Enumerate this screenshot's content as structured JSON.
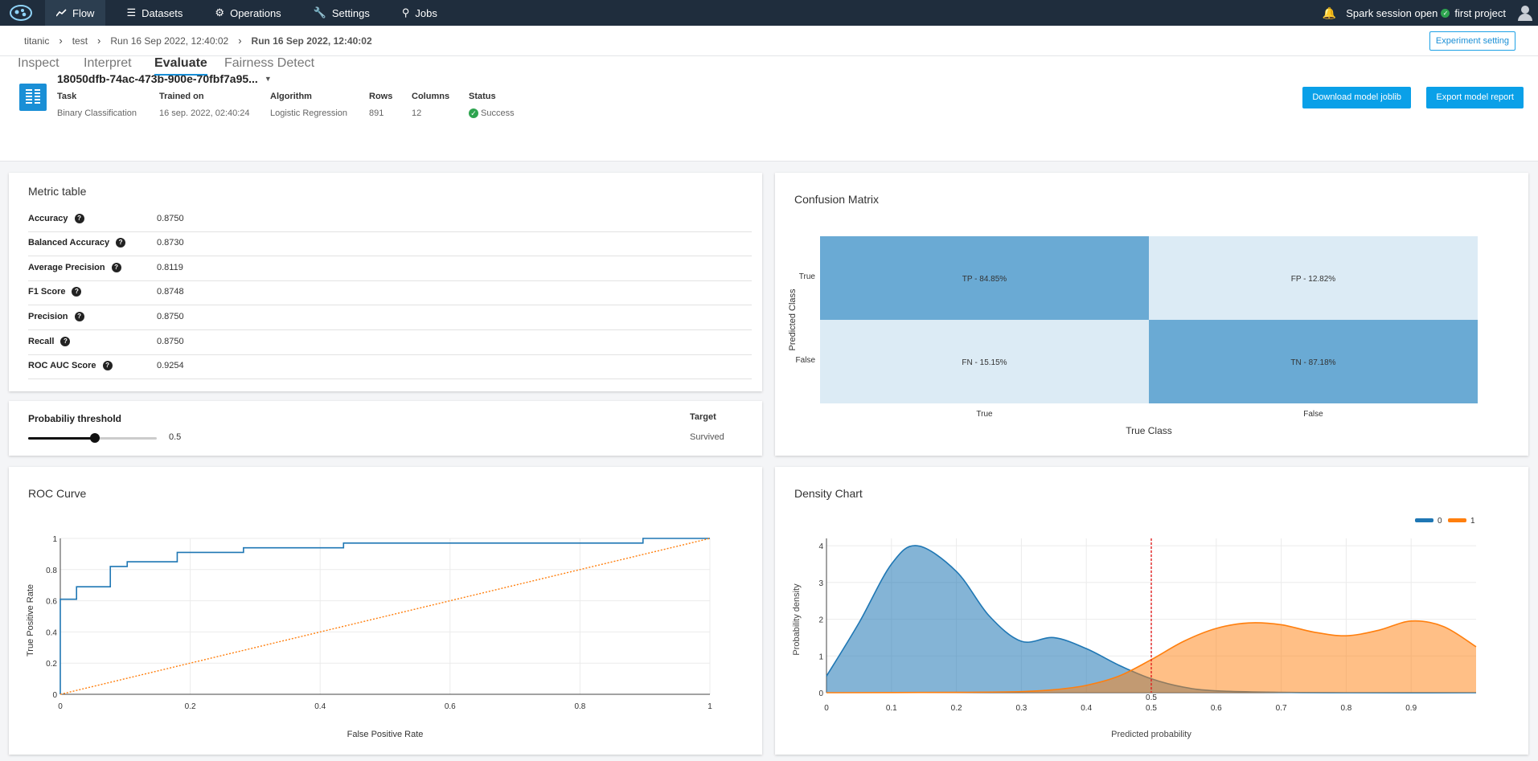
{
  "nav": {
    "items": [
      {
        "label": "Flow",
        "icon": "trend-icon"
      },
      {
        "label": "Datasets",
        "icon": "list-icon"
      },
      {
        "label": "Operations",
        "icon": "gear-icon"
      },
      {
        "label": "Settings",
        "icon": "wrench-icon"
      },
      {
        "label": "Jobs",
        "icon": "search-gear-icon"
      }
    ],
    "session": "Spark session open",
    "project": "first project"
  },
  "breadcrumb": {
    "items": [
      "titanic",
      "test",
      "Run 16 Sep 2022, 12:40:02",
      "Run 16 Sep 2022, 12:40:02"
    ],
    "experiment_button": "Experiment setting"
  },
  "model": {
    "title": "18050dfb-74ac-473b-900e-70fbf7a95...",
    "meta": [
      {
        "key": "Task",
        "value": "Binary Classification"
      },
      {
        "key": "Trained on",
        "value": "16 sep. 2022, 02:40:24"
      },
      {
        "key": "Algorithm",
        "value": "Logistic Regression"
      },
      {
        "key": "Rows",
        "value": "891"
      },
      {
        "key": "Columns",
        "value": "12"
      },
      {
        "key": "Status",
        "value": "Success"
      }
    ],
    "download_button": "Download model joblib",
    "export_button": "Export model report",
    "tabs": [
      "Inspect",
      "Interpret",
      "Evaluate",
      "Fairness Detect"
    ],
    "active_tab": "Evaluate"
  },
  "metrics": {
    "title": "Metric table",
    "rows": [
      {
        "name": "Accuracy",
        "value": "0.8750"
      },
      {
        "name": "Balanced Accuracy",
        "value": "0.8730"
      },
      {
        "name": "Average Precision",
        "value": "0.8119"
      },
      {
        "name": "F1 Score",
        "value": "0.8748"
      },
      {
        "name": "Precision",
        "value": "0.8750"
      },
      {
        "name": "Recall",
        "value": "0.8750"
      },
      {
        "name": "ROC AUC Score",
        "value": "0.9254"
      }
    ]
  },
  "threshold": {
    "label": "Probabiliy threshold",
    "value": "0.5",
    "fraction": 0.5,
    "target_label": "Target",
    "target_value": "Survived"
  },
  "colors": {
    "accent": "#0aa0e8",
    "nav_bg": "#1f2d3d",
    "series0": "#1f77b4",
    "series1": "#ff7f0e",
    "cm_dark": "#6aaad4",
    "cm_light": "#dcebf5"
  },
  "chart_data": [
    {
      "type": "heatmap",
      "title": "Confusion Matrix",
      "xlabel": "True Class",
      "ylabel": "Predicted Class",
      "x_categories": [
        "True",
        "False"
      ],
      "y_categories": [
        "True",
        "False"
      ],
      "cells": [
        [
          "TP - 84.85%",
          "FP - 12.82%"
        ],
        [
          "FN - 15.15%",
          "TN - 87.18%"
        ]
      ],
      "values": [
        [
          84.85,
          12.82
        ],
        [
          15.15,
          87.18
        ]
      ]
    },
    {
      "type": "line",
      "title": "ROC Curve",
      "xlabel": "False Positive Rate",
      "ylabel": "True Positive Rate",
      "xlim": [
        0,
        1
      ],
      "ylim": [
        0,
        1
      ],
      "xticks": [
        "0",
        "0.2",
        "0.4",
        "0.6",
        "0.8",
        "1"
      ],
      "yticks": [
        "0",
        "0.2",
        "0.4",
        "0.6",
        "0.8",
        "1"
      ],
      "series": [
        {
          "x": [
            0,
            0,
            0.025,
            0.025,
            0.077,
            0.077,
            0.103,
            0.103,
            0.18,
            0.18,
            0.282,
            0.282,
            0.436,
            0.436,
            0.897,
            0.897,
            1
          ],
          "y": [
            0,
            0.61,
            0.61,
            0.69,
            0.69,
            0.82,
            0.82,
            0.85,
            0.85,
            0.91,
            0.91,
            0.94,
            0.94,
            0.97,
            0.97,
            1,
            1
          ]
        },
        {
          "x": [
            0,
            1
          ],
          "y": [
            0,
            1
          ]
        }
      ]
    },
    {
      "type": "area",
      "title": "Density Chart",
      "xlabel": "Predicted probability",
      "ylabel": "Probability density",
      "xlim": [
        0,
        1
      ],
      "ylim": [
        0,
        4.2
      ],
      "xticks": [
        "0",
        "0.1",
        "0.2",
        "0.3",
        "0.4",
        "0.5",
        "0.6",
        "0.7",
        "0.8",
        "0.9"
      ],
      "yticks": [
        "0",
        "1",
        "2",
        "3",
        "4"
      ],
      "threshold": 0.5,
      "threshold_label": "0.5",
      "legend": [
        "0",
        "1"
      ],
      "legend_position": "top-right",
      "series": [
        {
          "name": "0",
          "x": [
            0,
            0.05,
            0.1,
            0.14,
            0.2,
            0.25,
            0.3,
            0.35,
            0.4,
            0.45,
            0.5,
            0.55,
            0.6,
            0.7,
            0.8,
            1.0
          ],
          "y": [
            0.45,
            1.9,
            3.5,
            4.0,
            3.3,
            2.1,
            1.4,
            1.5,
            1.2,
            0.75,
            0.38,
            0.15,
            0.05,
            0.01,
            0,
            0
          ]
        },
        {
          "name": "1",
          "x": [
            0,
            0.2,
            0.3,
            0.35,
            0.4,
            0.45,
            0.5,
            0.55,
            0.6,
            0.65,
            0.7,
            0.75,
            0.8,
            0.85,
            0.9,
            0.95,
            1.0
          ],
          "y": [
            0,
            0.01,
            0.03,
            0.08,
            0.2,
            0.45,
            0.9,
            1.4,
            1.75,
            1.9,
            1.85,
            1.65,
            1.55,
            1.7,
            1.95,
            1.8,
            1.25
          ]
        }
      ]
    }
  ]
}
